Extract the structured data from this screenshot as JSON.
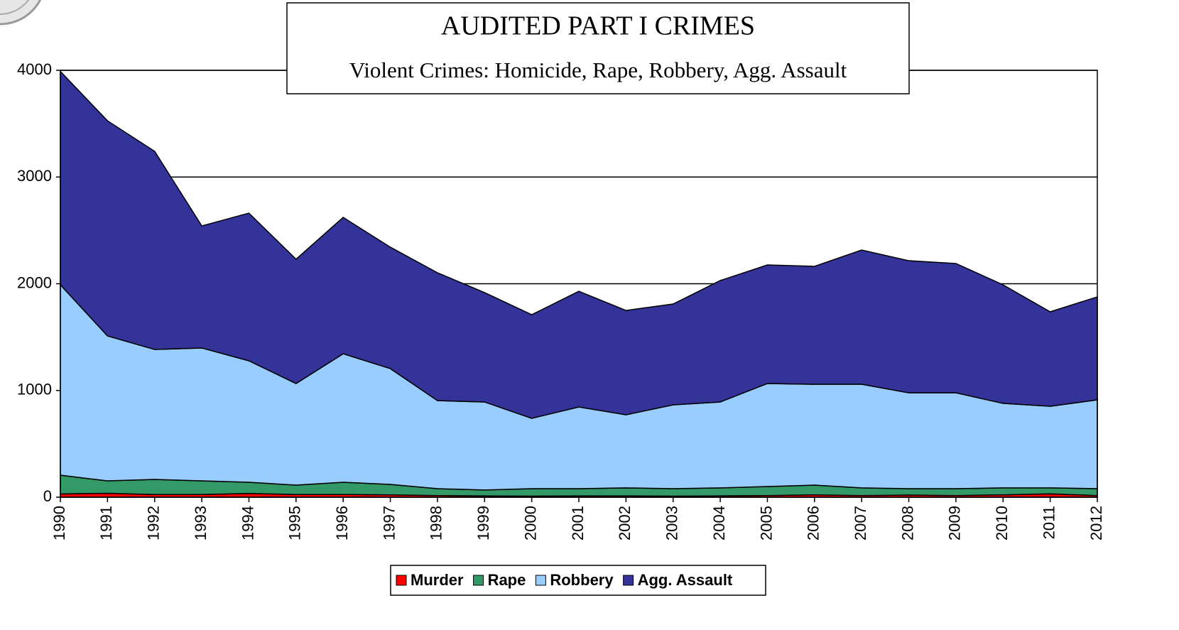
{
  "chart_data": {
    "type": "stacked-area",
    "title": "AUDITED PART I CRIMES",
    "subtitle": "Violent Crimes: Homicide, Rape, Robbery, Agg. Assault",
    "categories": [
      "1990",
      "1991",
      "1992",
      "1993",
      "1994",
      "1995",
      "1996",
      "1997",
      "1998",
      "1999",
      "2000",
      "2001",
      "2002",
      "2003",
      "2004",
      "2005",
      "2006",
      "2007",
      "2008",
      "2009",
      "2010",
      "2011",
      "2012"
    ],
    "series": [
      {
        "name": "Murder",
        "color": "#ff0000",
        "values": [
          30,
          37,
          25,
          25,
          35,
          25,
          25,
          22,
          15,
          12,
          10,
          12,
          12,
          10,
          12,
          15,
          22,
          15,
          20,
          15,
          22,
          32,
          15
        ]
      },
      {
        "name": "Rape",
        "color": "#339966",
        "values": [
          176,
          116,
          141,
          128,
          105,
          88,
          115,
          98,
          65,
          55,
          70,
          68,
          75,
          70,
          75,
          85,
          91,
          72,
          60,
          65,
          65,
          55,
          65
        ]
      },
      {
        "name": "Robbery",
        "color": "#99ccff",
        "values": [
          1784,
          1358,
          1218,
          1245,
          1138,
          952,
          1204,
          1085,
          825,
          825,
          659,
          765,
          685,
          785,
          805,
          965,
          945,
          971,
          898,
          898,
          792,
          765,
          832
        ]
      },
      {
        "name": "Agg. Assault",
        "color": "#333399",
        "values": [
          2000,
          2016,
          1857,
          1144,
          1384,
          1165,
          1278,
          1138,
          1198,
          1025,
          971,
          1085,
          978,
          945,
          1138,
          1111,
          1105,
          1258,
          1238,
          1212,
          1111,
          885,
          965
        ]
      }
    ],
    "ylim": [
      0,
      4000
    ],
    "yticks": [
      0,
      1000,
      2000,
      3000,
      4000
    ],
    "grid": true
  }
}
